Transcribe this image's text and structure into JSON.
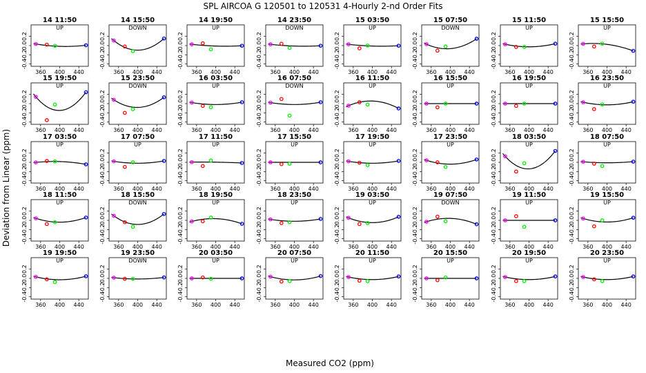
{
  "figure": {
    "title": "SPL   AIRCOA G   120501 to 120531   4-Hourly 2-nd Order Fits",
    "xlabel": "Measured CO2 (ppm)",
    "ylabel": "Deviation from Linear (ppm)"
  },
  "chart_data": {
    "type": "scatter",
    "layout": {
      "rows": 5,
      "cols": 8
    },
    "xlim": [
      340,
      460
    ],
    "ylim": [
      -0.45,
      0.45
    ],
    "xticks": [
      360,
      400,
      440
    ],
    "yticks": [
      -0.4,
      -0.2,
      0.0,
      0.2
    ],
    "xtick_labels": [
      "360",
      "400",
      "440"
    ],
    "ytick_labels": [
      "-0.4",
      "-0.2",
      "0.0",
      "0.2"
    ],
    "series_colors": {
      "blue": "#0000ff",
      "magenta": "#ff00ff",
      "red": "#ff0000",
      "green": "#00ee00",
      "fit": "#000000"
    },
    "panels": [
      {
        "label": "14 11:50",
        "dir": "UP",
        "a": -0.02,
        "b": 0.05,
        "c": 0.0,
        "red": 0.02,
        "green": -0.005
      },
      {
        "label": "14 15:50",
        "dir": "DOWN",
        "a": 0.0,
        "b": 0.3,
        "c": 0.0,
        "red": -0.02,
        "green": -0.12
      },
      {
        "label": "14 19:50",
        "dir": "UP",
        "a": -0.02,
        "b": 0.03,
        "c": 0.0,
        "red": 0.05,
        "green": -0.08
      },
      {
        "label": "14 23:50",
        "dir": "DOWN",
        "a": -0.02,
        "b": 0.03,
        "c": 0.0,
        "red": 0.04,
        "green": -0.05
      },
      {
        "label": "15 03:50",
        "dir": "UP",
        "a": -0.02,
        "b": 0.03,
        "c": 0.0,
        "red": -0.06,
        "green": 0.0
      },
      {
        "label": "15 07:50",
        "dir": "DOWN",
        "a": 0.05,
        "b": 0.2,
        "c": 0.0,
        "red": -0.11,
        "green": -0.02
      },
      {
        "label": "15 11:50",
        "dir": "UP",
        "a": 0.0,
        "b": 0.08,
        "c": 0.0,
        "red": -0.03,
        "green": -0.03
      },
      {
        "label": "15 15:50",
        "dir": "UP",
        "a": -0.08,
        "b": -0.08,
        "c": 0.0,
        "red": -0.02,
        "green": 0.04
      },
      {
        "label": "15 19:50",
        "dir": "UP",
        "a": 0.02,
        "b": 0.45,
        "c": 0.0,
        "red": -0.36,
        "green": -0.02
      },
      {
        "label": "15 23:50",
        "dir": "DOWN",
        "a": 0.01,
        "b": 0.25,
        "c": 0.0,
        "red": -0.2,
        "green": -0.12
      },
      {
        "label": "16 03:50",
        "dir": "UP",
        "a": 0.0,
        "b": 0.06,
        "c": 0.0,
        "red": -0.05,
        "green": -0.08
      },
      {
        "label": "16 07:50",
        "dir": "DOWN",
        "a": 0.0,
        "b": 0.06,
        "c": 0.0,
        "red": 0.1,
        "green": -0.26
      },
      {
        "label": "16 11:50",
        "dir": "UP",
        "a": -0.02,
        "b": -0.17,
        "c": 0.0,
        "red": 0.03,
        "green": -0.02
      },
      {
        "label": "16 15:50",
        "dir": "UP",
        "a": 0.0,
        "b": 0.0,
        "c": 0.0,
        "red": -0.08,
        "green": 0.0
      },
      {
        "label": "16 19:50",
        "dir": "UP",
        "a": 0.0,
        "b": 0.0,
        "c": 0.0,
        "red": -0.05,
        "green": 0.0
      },
      {
        "label": "16 23:50",
        "dir": "UP",
        "a": 0.0,
        "b": 0.08,
        "c": 0.0,
        "red": -0.12,
        "green": -0.02
      },
      {
        "label": "17 03:50",
        "dir": "UP",
        "a": -0.02,
        "b": -0.05,
        "c": 0.0,
        "red": 0.03,
        "green": 0.02
      },
      {
        "label": "17 07:50",
        "dir": "UP",
        "a": 0.0,
        "b": 0.06,
        "c": 0.0,
        "red": -0.1,
        "green": 0.0
      },
      {
        "label": "17 11:50",
        "dir": "UP",
        "a": -0.01,
        "b": -0.01,
        "c": 0.0,
        "red": -0.08,
        "green": 0.04
      },
      {
        "label": "17 15:50",
        "dir": "UP",
        "a": 0.0,
        "b": 0.0,
        "c": 0.0,
        "red": -0.04,
        "green": -0.03
      },
      {
        "label": "17 19:50",
        "dir": "UP",
        "a": 0.0,
        "b": 0.06,
        "c": 0.0,
        "red": -0.01,
        "green": -0.06
      },
      {
        "label": "17 23:50",
        "dir": "UP",
        "a": 0.0,
        "b": 0.12,
        "c": 0.0,
        "red": 0.0,
        "green": -0.1
      },
      {
        "label": "18 03:50",
        "dir": "UP",
        "a": 0.03,
        "b": 0.43,
        "c": 0.0,
        "red": -0.2,
        "green": -0.02
      },
      {
        "label": "18 07:50",
        "dir": "UP",
        "a": 0.0,
        "b": 0.03,
        "c": 0.0,
        "red": -0.03,
        "green": -0.08
      },
      {
        "label": "18 11:50",
        "dir": "UP",
        "a": 0.0,
        "b": 0.12,
        "c": 0.0,
        "red": -0.08,
        "green": -0.04
      },
      {
        "label": "18 15:50",
        "dir": "DOWN",
        "a": 0.0,
        "b": 0.27,
        "c": 0.0,
        "red": -0.04,
        "green": -0.14
      },
      {
        "label": "18 19:50",
        "dir": "UP",
        "a": -0.02,
        "b": -0.11,
        "c": 0.0,
        "red": -0.02,
        "green": 0.06
      },
      {
        "label": "18 23:50",
        "dir": "UP",
        "a": 0.0,
        "b": 0.06,
        "c": 0.0,
        "red": -0.06,
        "green": -0.04
      },
      {
        "label": "19 03:50",
        "dir": "UP",
        "a": 0.0,
        "b": 0.15,
        "c": 0.0,
        "red": -0.08,
        "green": -0.06
      },
      {
        "label": "19 07:50",
        "dir": "DOWN",
        "a": -0.02,
        "b": -0.13,
        "c": 0.0,
        "red": 0.08,
        "green": -0.02
      },
      {
        "label": "19 11:50",
        "dir": "UP",
        "a": 0.0,
        "b": 0.0,
        "c": 0.0,
        "red": 0.09,
        "green": -0.14
      },
      {
        "label": "19 15:50",
        "dir": "UP",
        "a": 0.0,
        "b": 0.11,
        "c": 0.0,
        "red": -0.13,
        "green": 0.0
      },
      {
        "label": "19 19:50",
        "dir": "UP",
        "a": 0.0,
        "b": 0.09,
        "c": 0.0,
        "red": -0.02,
        "green": -0.08
      },
      {
        "label": "19 23:50",
        "dir": "DOWN",
        "a": 0.0,
        "b": 0.04,
        "c": 0.0,
        "red": -0.01,
        "green": -0.01
      },
      {
        "label": "20 03:50",
        "dir": "UP",
        "a": 0.0,
        "b": 0.0,
        "c": 0.0,
        "red": 0.02,
        "green": -0.01
      },
      {
        "label": "20 07:50",
        "dir": "UP",
        "a": 0.0,
        "b": 0.1,
        "c": 0.0,
        "red": -0.07,
        "green": -0.06
      },
      {
        "label": "20 11:50",
        "dir": "UP",
        "a": 0.0,
        "b": 0.08,
        "c": 0.0,
        "red": -0.05,
        "green": -0.06
      },
      {
        "label": "20 15:50",
        "dir": "UP",
        "a": 0.0,
        "b": 0.0,
        "c": 0.0,
        "red": -0.04,
        "green": 0.02
      },
      {
        "label": "20 19:50",
        "dir": "UP",
        "a": 0.0,
        "b": 0.08,
        "c": 0.0,
        "red": -0.06,
        "green": -0.06
      },
      {
        "label": "20 23:50",
        "dir": "UP",
        "a": 0.0,
        "b": 0.08,
        "c": 0.0,
        "red": -0.02,
        "green": -0.06
      }
    ],
    "point_x": {
      "magenta": 350,
      "red": 373,
      "green": 390,
      "blue": 455
    }
  }
}
